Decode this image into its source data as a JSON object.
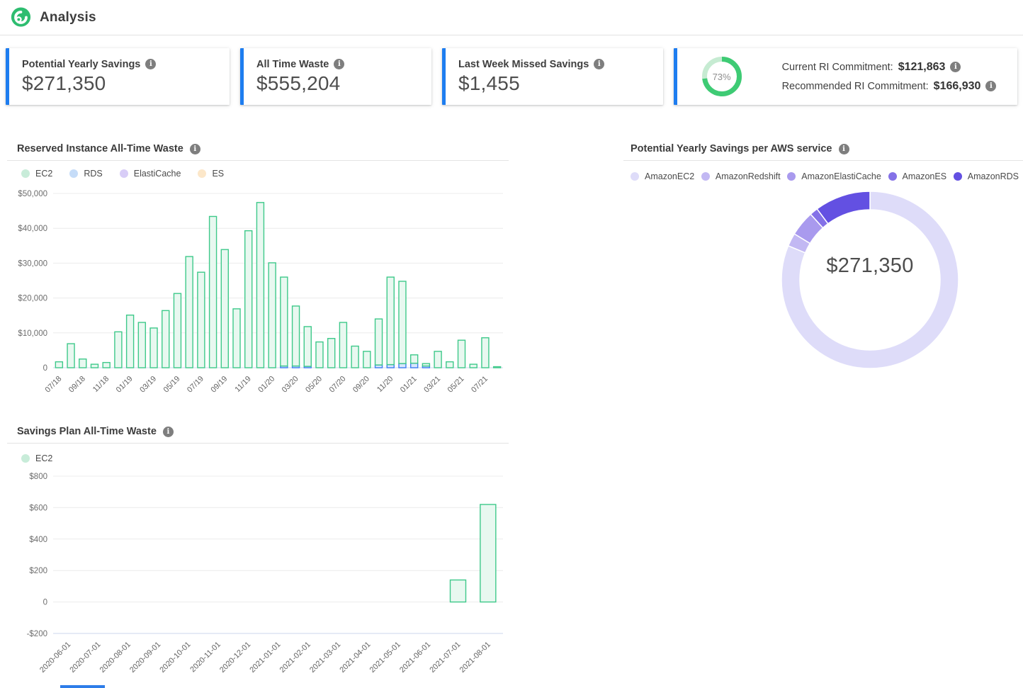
{
  "header": {
    "title": "Analysis",
    "logo_color": "#2ebd70"
  },
  "cards": [
    {
      "label": "Potential Yearly Savings",
      "value": "$271,350"
    },
    {
      "label": "All Time Waste",
      "value": "$555,204"
    },
    {
      "label": "Last Week Missed Savings",
      "value": "$1,455"
    },
    {
      "gauge_percent_label": "73%",
      "gauge_percent": 73,
      "gauge_color": "#3ecb74",
      "gauge_track_color": "#c6ebd2",
      "rows": [
        {
          "label": "Current RI Commitment:",
          "value": "$121,863"
        },
        {
          "label": "Recommended RI Commitment:",
          "value": "$166,930"
        }
      ]
    }
  ],
  "accent_colors": {
    "card_border": "#1e7df0",
    "grid": "#ececec",
    "axis_base": "#ccd5ee"
  },
  "chart_data": [
    {
      "type": "bar",
      "title": "Reserved Instance All-Time Waste",
      "legend": [
        {
          "name": "EC2",
          "color": "#c8ecd9"
        },
        {
          "name": "RDS",
          "color": "#c5dcf8"
        },
        {
          "name": "ElastiCache",
          "color": "#d8cdf7"
        },
        {
          "name": "ES",
          "color": "#fce7c9"
        }
      ],
      "categories": [
        "07/18",
        "08/18",
        "09/18",
        "10/18",
        "11/18",
        "12/18",
        "01/19",
        "02/19",
        "03/19",
        "04/19",
        "05/19",
        "06/19",
        "07/19",
        "08/19",
        "09/19",
        "10/19",
        "11/19",
        "12/19",
        "01/20",
        "02/20",
        "03/20",
        "04/20",
        "05/20",
        "06/20",
        "07/20",
        "08/20",
        "09/20",
        "10/20",
        "11/20",
        "12/20",
        "01/21",
        "02/21",
        "03/21",
        "04/21",
        "05/21",
        "06/21",
        "07/21",
        "08/21"
      ],
      "series": [
        {
          "name": "EC2",
          "stroke": "#3ec98a",
          "fill": "#e8f8f0",
          "values": [
            1700,
            6900,
            2500,
            1000,
            1500,
            10300,
            15100,
            13000,
            11400,
            16400,
            21300,
            31900,
            27400,
            43400,
            33900,
            16900,
            39300,
            47400,
            30100,
            25500,
            17200,
            11400,
            7400,
            8400,
            13000,
            6200,
            4700,
            13200,
            25100,
            23600,
            2400,
            700,
            4700,
            1700,
            7900,
            1000,
            8600,
            300
          ]
        },
        {
          "name": "RDS",
          "stroke": "#3b7ef2",
          "fill": "#d8e6fb",
          "values": [
            0,
            0,
            0,
            0,
            0,
            0,
            0,
            0,
            0,
            0,
            0,
            0,
            0,
            0,
            0,
            0,
            0,
            0,
            0,
            500,
            500,
            400,
            0,
            0,
            0,
            0,
            0,
            800,
            900,
            1200,
            1300,
            500,
            0,
            0,
            0,
            0,
            0,
            0
          ]
        }
      ],
      "ylim": [
        0,
        50000
      ],
      "yticks": [
        {
          "label": "$50,000",
          "v": 50000
        },
        {
          "label": "$40,000",
          "v": 40000
        },
        {
          "label": "$30,000",
          "v": 30000
        },
        {
          "label": "$20,000",
          "v": 20000
        },
        {
          "label": "$10,000",
          "v": 10000
        },
        {
          "label": "0",
          "v": 0
        }
      ],
      "x_tick_every": 2,
      "grid": true,
      "legend_position": "top"
    },
    {
      "type": "pie",
      "title": "Potential Yearly Savings per AWS service",
      "center_label": "$271,350",
      "slices": [
        {
          "name": "AmazonEC2",
          "color": "#dedcf9",
          "percent": 81.3
        },
        {
          "name": "AmazonRedshift",
          "color": "#c2b8f3",
          "percent": 2.4
        },
        {
          "name": "AmazonElastiCache",
          "color": "#a99aee",
          "percent": 4.6
        },
        {
          "name": "AmazonES",
          "color": "#8471e7",
          "percent": 1.5
        },
        {
          "name": "AmazonRDS",
          "color": "#6350e2",
          "percent": 10.2
        }
      ],
      "legend_position": "top"
    },
    {
      "type": "bar",
      "title": "Savings Plan All-Time Waste",
      "legend": [
        {
          "name": "EC2",
          "color": "#c8ecd9"
        }
      ],
      "categories": [
        "2020-06-01",
        "2020-07-01",
        "2020-08-01",
        "2020-09-01",
        "2020-10-01",
        "2020-11-01",
        "2020-12-01",
        "2021-01-01",
        "2021-02-01",
        "2021-03-01",
        "2021-04-01",
        "2021-05-01",
        "2021-06-01",
        "2021-07-01",
        "2021-08-01"
      ],
      "series": [
        {
          "name": "EC2",
          "stroke": "#3ec98a",
          "fill": "#e8f8f0",
          "values": [
            0,
            0,
            0,
            0,
            0,
            0,
            0,
            0,
            0,
            0,
            0,
            0,
            0,
            140,
            620
          ]
        }
      ],
      "ylim": [
        -200,
        800
      ],
      "yticks": [
        {
          "label": "$800",
          "v": 800
        },
        {
          "label": "$600",
          "v": 600
        },
        {
          "label": "$400",
          "v": 400
        },
        {
          "label": "$200",
          "v": 200
        },
        {
          "label": "0",
          "v": 0
        },
        {
          "label": "-$200",
          "v": -200
        }
      ],
      "x_tick_every": 1,
      "grid": true,
      "legend_position": "top"
    }
  ]
}
